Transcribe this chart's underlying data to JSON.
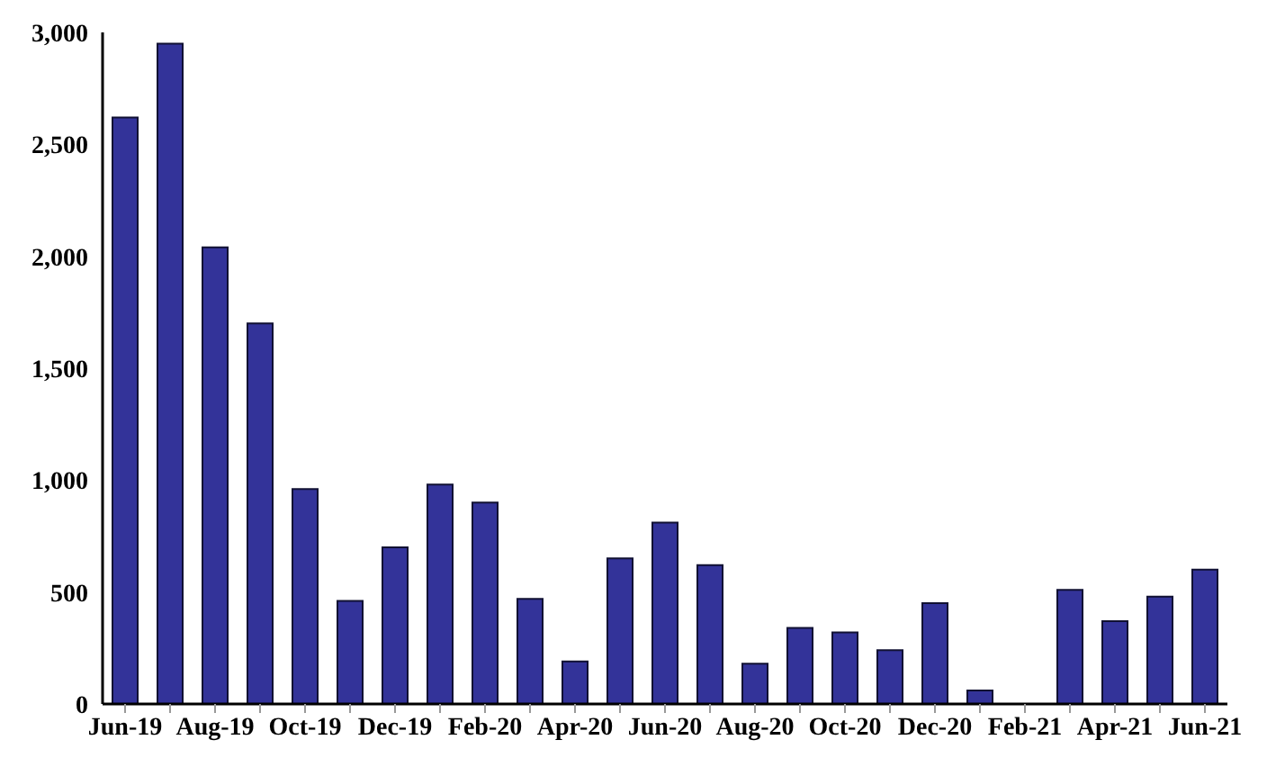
{
  "chart_data": {
    "type": "bar",
    "categories": [
      "Jun-19",
      null,
      "Aug-19",
      null,
      "Oct-19",
      null,
      "Dec-19",
      null,
      "Feb-20",
      null,
      "Apr-20",
      null,
      "Jun-20",
      null,
      "Aug-20",
      null,
      "Oct-20",
      null,
      "Dec-20",
      null,
      "Feb-21",
      null,
      "Apr-21",
      null,
      "Jun-21"
    ],
    "series": [
      {
        "color": "#333399",
        "values": [
          2620,
          2950,
          2040,
          1700,
          960,
          460,
          700,
          980,
          900,
          470,
          190,
          650,
          810,
          620,
          180,
          340,
          320,
          240,
          450,
          60,
          0,
          510,
          370,
          480,
          600
        ]
      }
    ],
    "ylim": [
      0,
      3000
    ],
    "yticks": [
      0,
      {
        "value": 500,
        "label": "500"
      },
      {
        "value": 1000,
        "label": "1,000"
      },
      {
        "value": 1500,
        "label": "1,500"
      },
      {
        "value": 2000,
        "label": "2,000"
      },
      {
        "value": 2500,
        "label": "2,500"
      },
      {
        "value": 3000,
        "label": "3,000"
      }
    ],
    "grid": false,
    "legend": false
  }
}
